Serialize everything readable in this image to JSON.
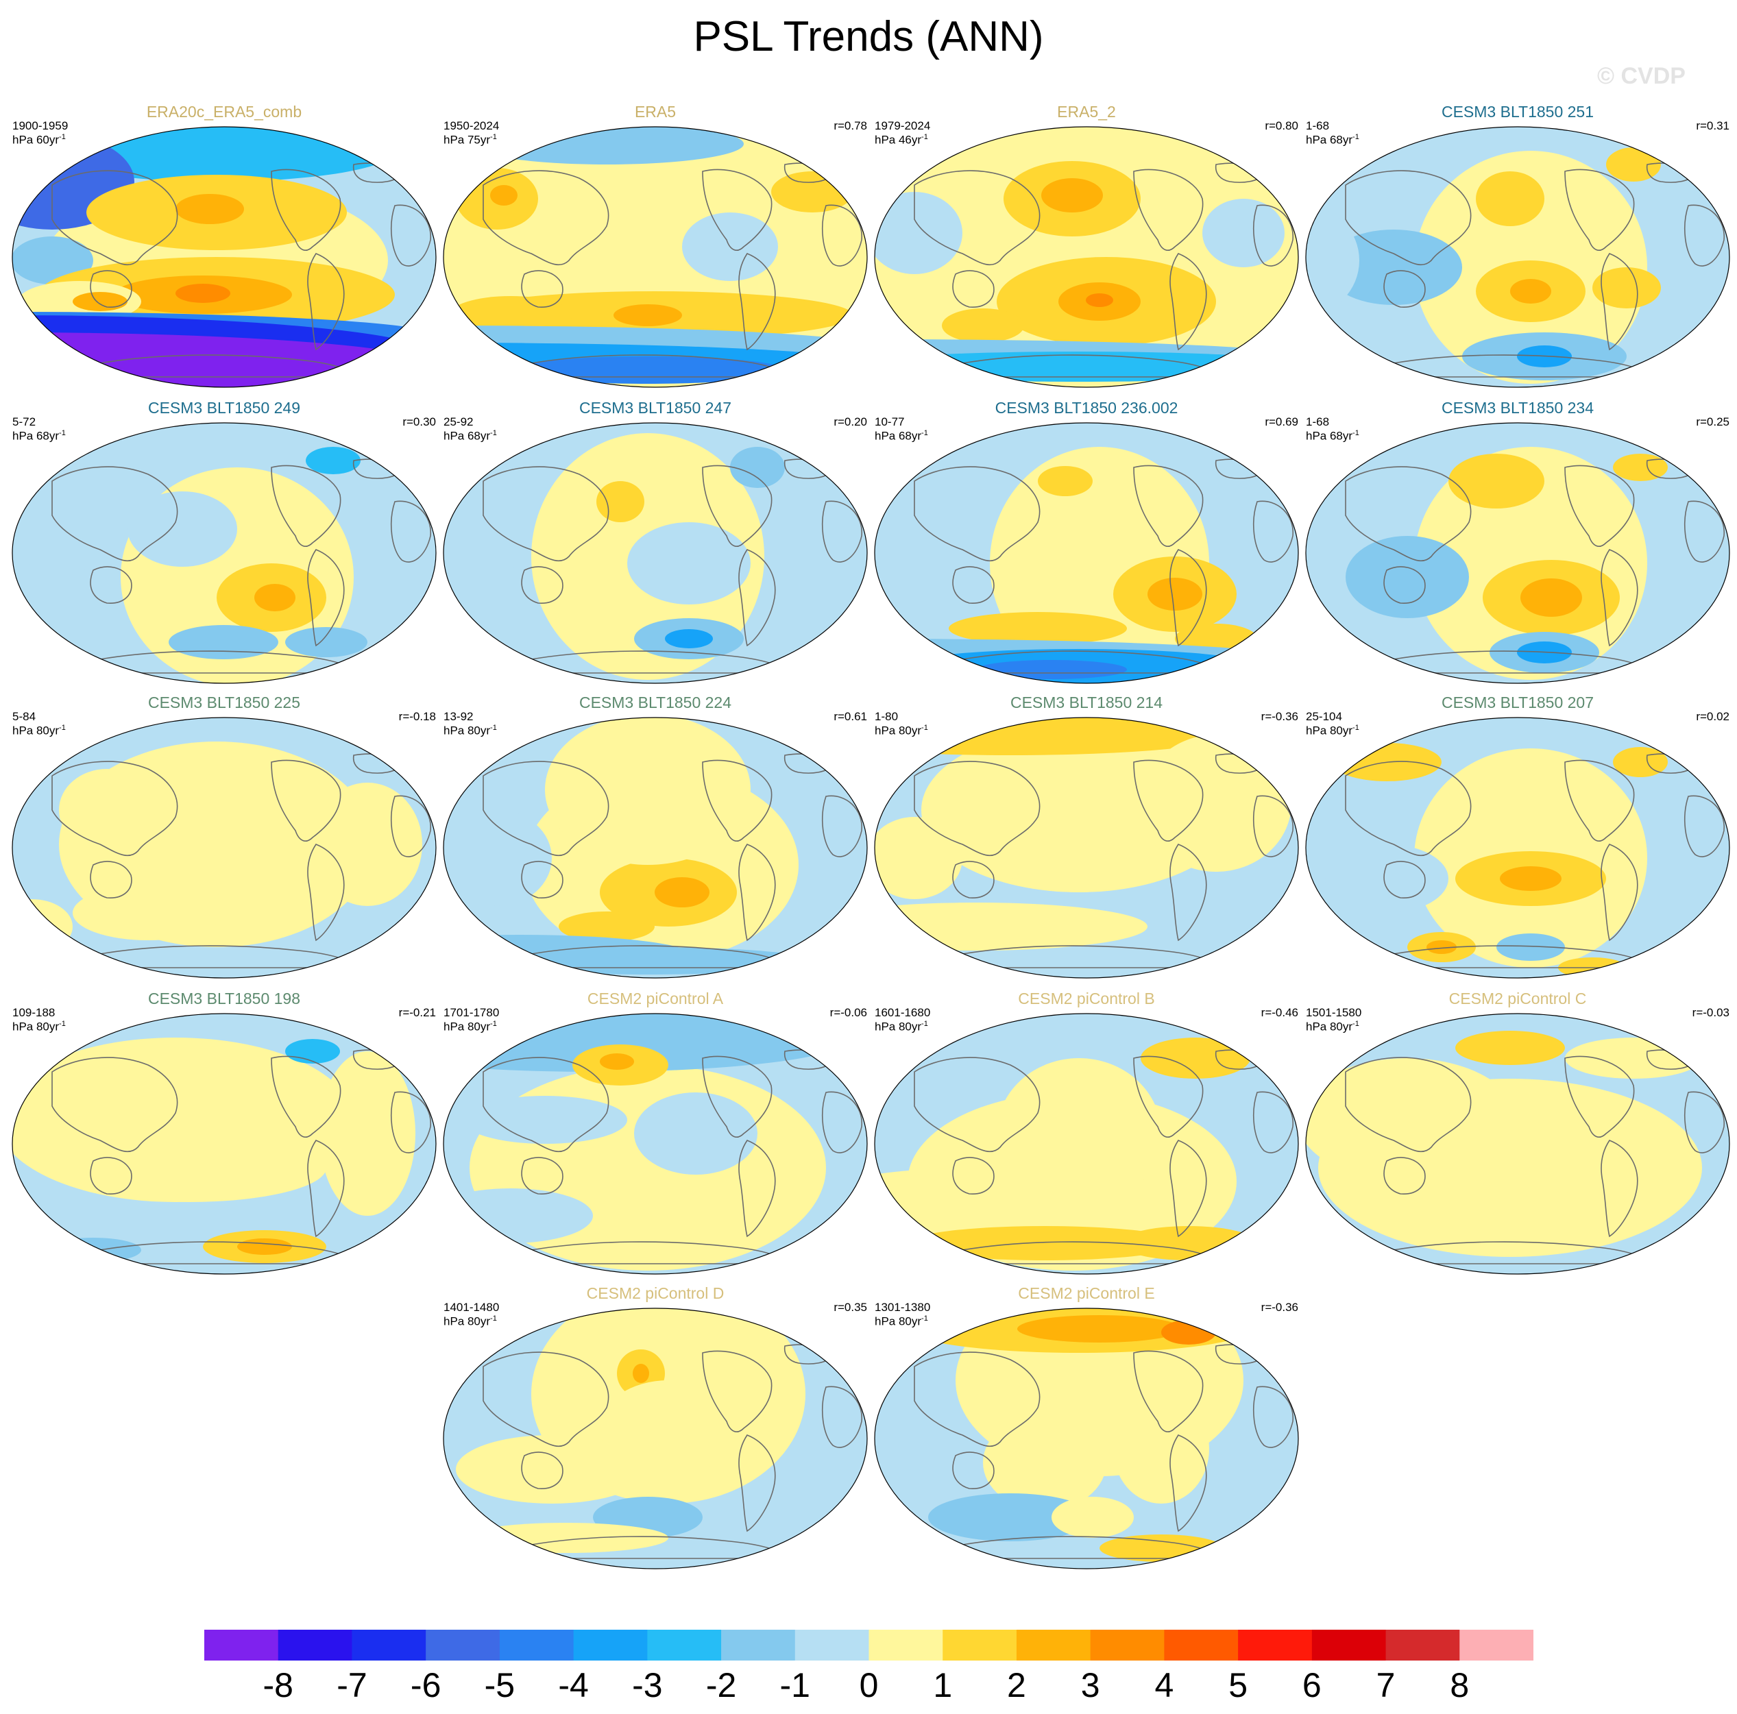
{
  "title": "PSL Trends (ANN)",
  "watermark": "© CVDP",
  "units_prefix": "hPa",
  "units_exponent": "-1",
  "colorbar": {
    "ticks": [
      "-8",
      "-7",
      "-6",
      "-5",
      "-4",
      "-3",
      "-2",
      "-1",
      "0",
      "1",
      "2",
      "3",
      "4",
      "5",
      "6",
      "7",
      "8"
    ],
    "colors": [
      "#7f22ee",
      "#2a12ee",
      "#1a2ef0",
      "#3e6ae6",
      "#2a82f2",
      "#16a3f8",
      "#26bdf6",
      "#84c9ee",
      "#b6dff3",
      "#fff79c",
      "#ffd732",
      "#ffb208",
      "#ff8c00",
      "#ff5a00",
      "#ff1a0a",
      "#dc0007",
      "#d52a2c",
      "#fdafb4"
    ]
  },
  "panels": [
    {
      "title": "ERA20c_ERA5_comb",
      "title_color": "#c9b068",
      "period": "1900-1959",
      "rate": "60yr",
      "r": ""
    },
    {
      "title": "ERA5",
      "title_color": "#c9b068",
      "period": "1950-2024",
      "rate": "75yr",
      "r": "r=0.78"
    },
    {
      "title": "ERA5_2",
      "title_color": "#c9b068",
      "period": "1979-2024",
      "rate": "46yr",
      "r": "r=0.80"
    },
    {
      "title": "CESM3 BLT1850 251",
      "title_color": "#1e6e8e",
      "period": "1-68",
      "rate": "68yr",
      "r": "r=0.31"
    },
    {
      "title": "CESM3 BLT1850 249",
      "title_color": "#1e6e8e",
      "period": "5-72",
      "rate": "68yr",
      "r": "r=0.30"
    },
    {
      "title": "CESM3 BLT1850 247",
      "title_color": "#1e6e8e",
      "period": "25-92",
      "rate": "68yr",
      "r": "r=0.20"
    },
    {
      "title": "CESM3 BLT1850 236.002",
      "title_color": "#1e6e8e",
      "period": "10-77",
      "rate": "68yr",
      "r": "r=0.69"
    },
    {
      "title": "CESM3 BLT1850 234",
      "title_color": "#1e6e8e",
      "period": "1-68",
      "rate": "68yr",
      "r": "r=0.25"
    },
    {
      "title": "CESM3 BLT1850 225",
      "title_color": "#5c8a6e",
      "period": "5-84",
      "rate": "80yr",
      "r": "r=-0.18"
    },
    {
      "title": "CESM3 BLT1850 224",
      "title_color": "#5c8a6e",
      "period": "13-92",
      "rate": "80yr",
      "r": "r=0.61"
    },
    {
      "title": "CESM3 BLT1850 214",
      "title_color": "#5c8a6e",
      "period": "1-80",
      "rate": "80yr",
      "r": "r=-0.36"
    },
    {
      "title": "CESM3 BLT1850 207",
      "title_color": "#5c8a6e",
      "period": "25-104",
      "rate": "80yr",
      "r": "r=0.02"
    },
    {
      "title": "CESM3 BLT1850 198",
      "title_color": "#5c8a6e",
      "period": "109-188",
      "rate": "80yr",
      "r": "r=-0.21"
    },
    {
      "title": "CESM2 piControl A",
      "title_color": "#d6bf7c",
      "period": "1701-1780",
      "rate": "80yr",
      "r": "r=-0.06"
    },
    {
      "title": "CESM2 piControl B",
      "title_color": "#d6bf7c",
      "period": "1601-1680",
      "rate": "80yr",
      "r": "r=-0.46"
    },
    {
      "title": "CESM2 piControl C",
      "title_color": "#d6bf7c",
      "period": "1501-1580",
      "rate": "80yr",
      "r": "r=-0.03"
    },
    {
      "title": "CESM2 piControl D",
      "title_color": "#d6bf7c",
      "period": "1401-1480",
      "rate": "80yr",
      "r": "r=0.35"
    },
    {
      "title": "CESM2 piControl E",
      "title_color": "#d6bf7c",
      "period": "1301-1380",
      "rate": "80yr",
      "r": "r=-0.36"
    }
  ]
}
